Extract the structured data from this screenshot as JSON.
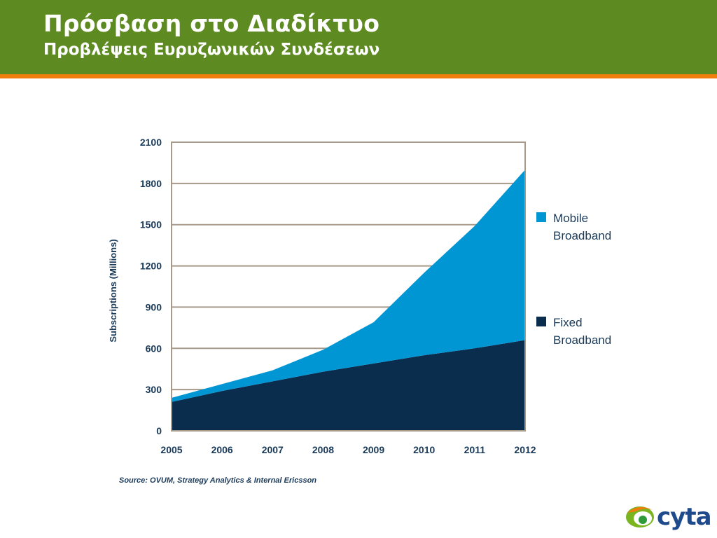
{
  "header": {
    "title": "Πρόσβαση στο Διαδίκτυο",
    "subtitle": "Προβλέψεις Ευρυζωνικών Συνδέσεων"
  },
  "colors": {
    "header_green": "#5e8b21",
    "accent_orange": "#f07e0c",
    "mobile": "#0096d4",
    "fixed": "#0a2d4e"
  },
  "chart_data": {
    "type": "area",
    "stacked": true,
    "x": [
      "2005",
      "2006",
      "2007",
      "2008",
      "2009",
      "2010",
      "2011",
      "2012"
    ],
    "series": [
      {
        "name": "Fixed Broadband",
        "values": [
          210,
          290,
          360,
          430,
          490,
          550,
          600,
          660
        ],
        "color": "#0a2d4e"
      },
      {
        "name": "Mobile Broadband",
        "values": [
          30,
          50,
          80,
          160,
          300,
          600,
          890,
          1240
        ],
        "color": "#0096d4"
      }
    ],
    "ylabel": "Subscriptions (Millions)",
    "yticks": [
      0,
      300,
      600,
      900,
      1200,
      1500,
      1800,
      2100
    ],
    "ylim": [
      0,
      2100
    ],
    "grid": true,
    "legend": {
      "placement": "right",
      "items": [
        {
          "line1": "Mobile",
          "line2": "Broadband",
          "color": "#0096d4"
        },
        {
          "line1": "Fixed",
          "line2": "Broadband",
          "color": "#0a2d4e"
        }
      ]
    },
    "source": "Source: OVUM, Strategy Analytics & Internal Ericsson"
  },
  "logo": {
    "text": "cyta"
  }
}
